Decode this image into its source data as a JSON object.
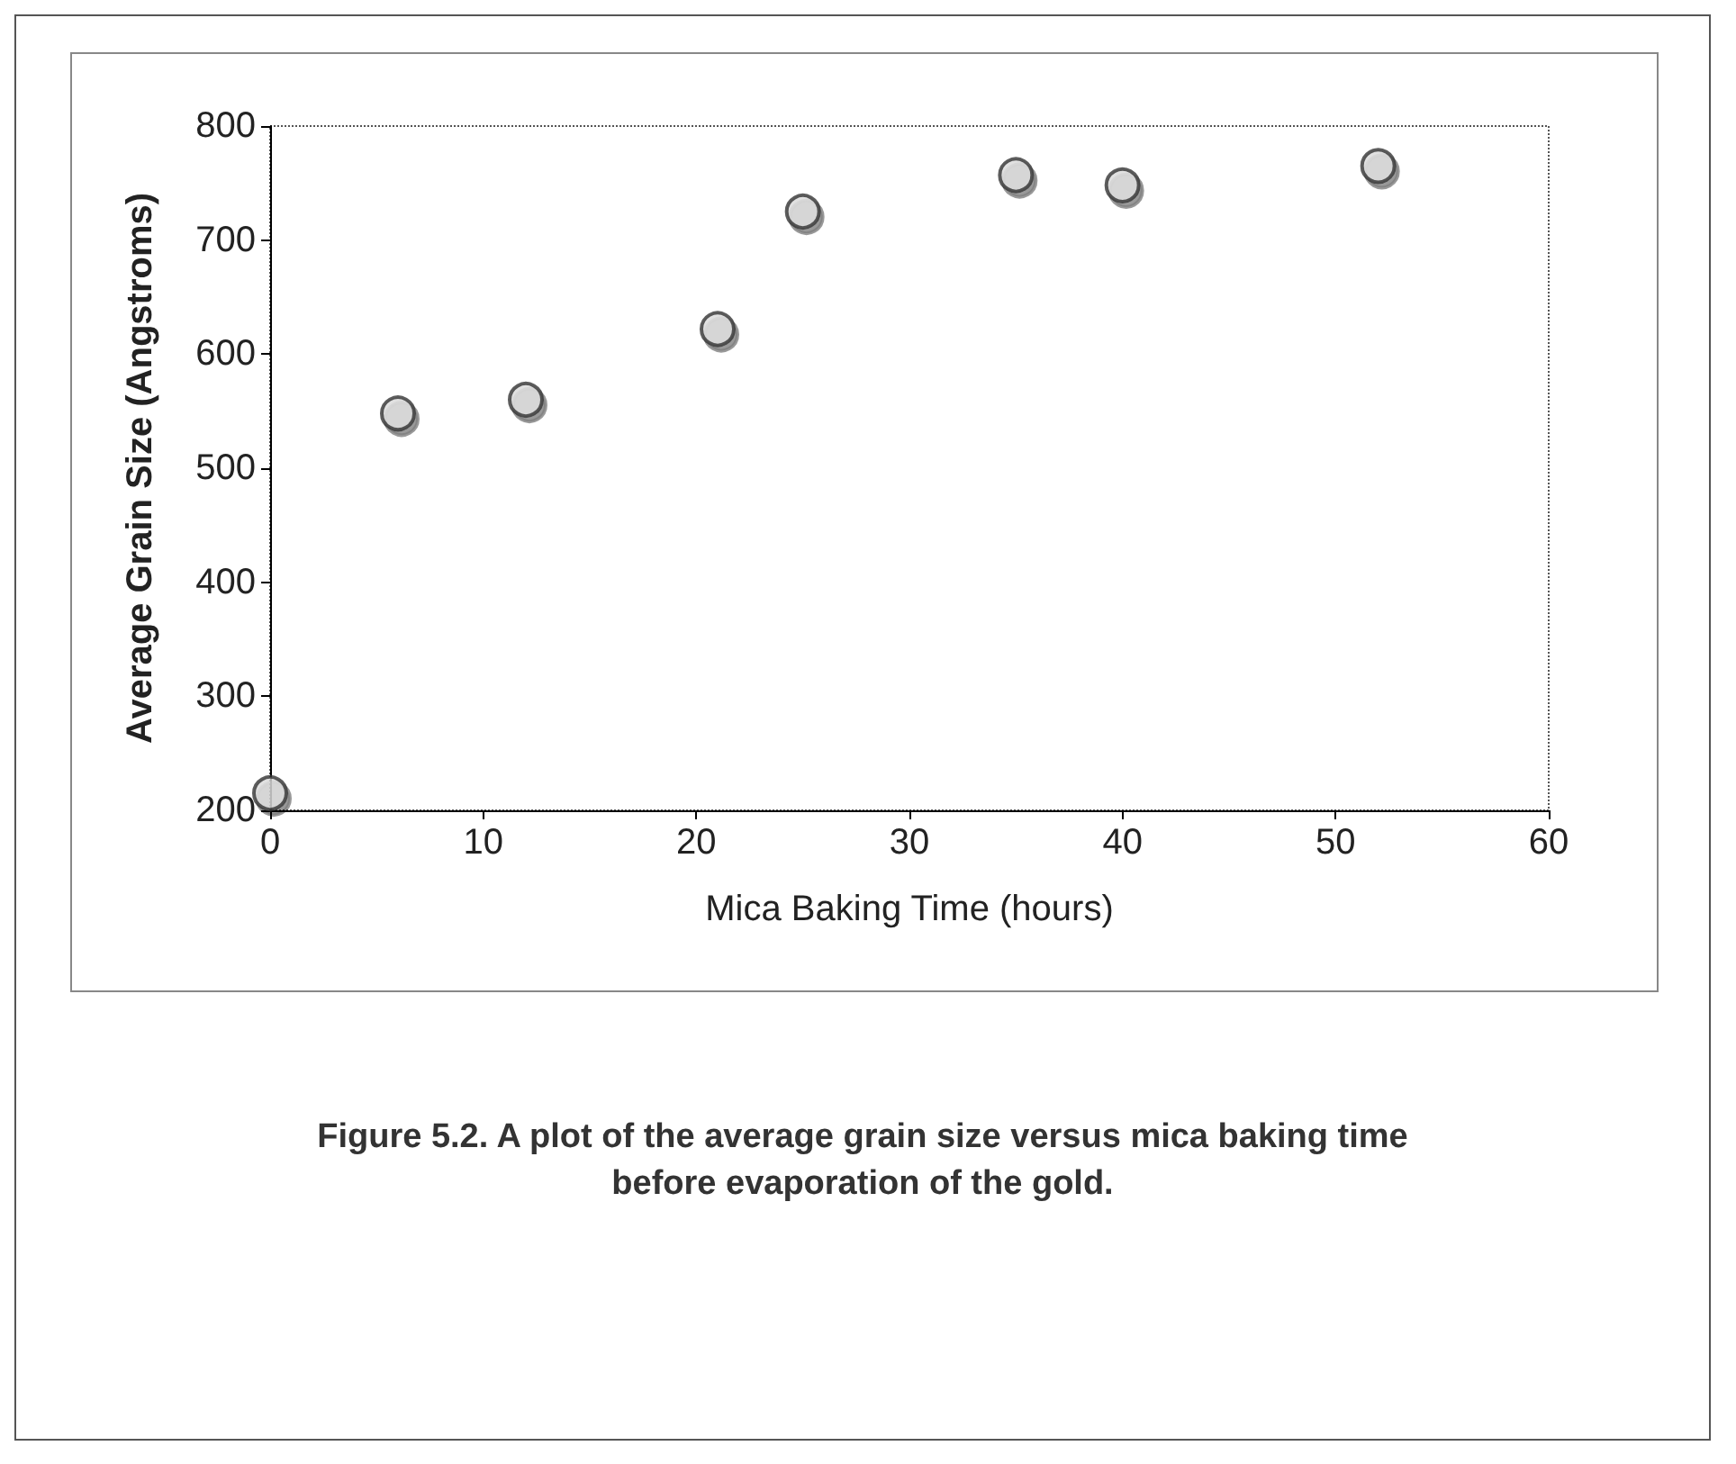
{
  "chart_data": {
    "type": "scatter",
    "xlabel": "Mica Baking Time (hours)",
    "ylabel": "Average Grain Size (Angstroms)",
    "x": [
      0,
      6,
      12,
      21,
      25,
      35,
      40,
      52
    ],
    "values": [
      215,
      548,
      560,
      622,
      725,
      757,
      748,
      765
    ],
    "color": "#d9d9d9",
    "xlim": [
      0,
      60
    ],
    "xticks": [
      0,
      10,
      20,
      30,
      40,
      50,
      60
    ],
    "ylim": [
      200,
      800
    ],
    "yticks": [
      200,
      300,
      400,
      500,
      600,
      700,
      800
    ],
    "marker": "circle",
    "annotations": [
      "Figure 5.2. A plot of the average grain size versus mica baking time before evaporation of the gold."
    ]
  }
}
